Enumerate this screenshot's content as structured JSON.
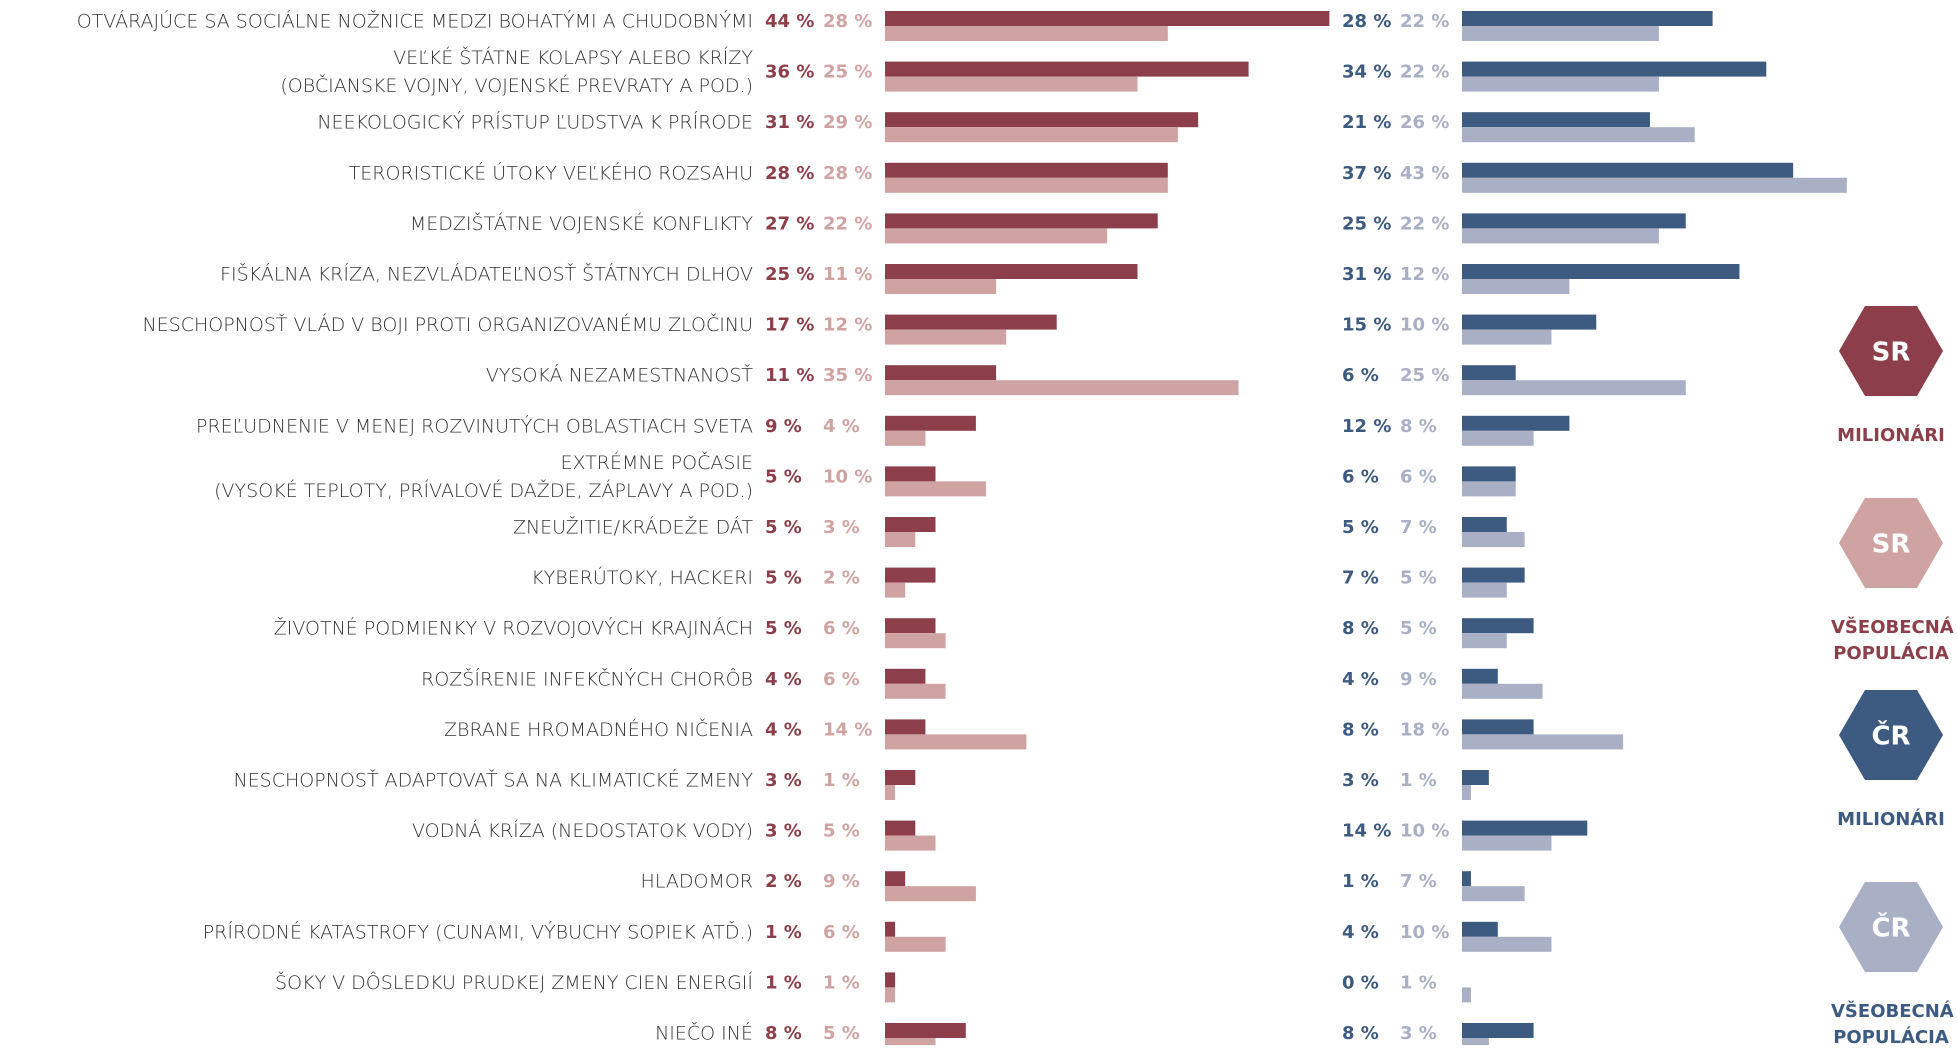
{
  "chart_data": {
    "type": "bar",
    "orientation": "horizontal",
    "categories": [
      "OTVÁRAJÚCE SA SOCIÁLNE NOŽNICE MEDZI BOHATÝMI A CHUDOBNÝMI",
      [
        "VEĽKÉ ŠTÁTNE KOLAPSY ALEBO KRÍZY",
        "(OBČIANSKE VOJNY, VOJENSKÉ PREVRATY A POD.)"
      ],
      "NEEKOLOGICKÝ PRÍSTUP ĽUDSTVA K PRÍRODE",
      "TERORISTICKÉ ÚTOKY VEĽKÉHO ROZSAHU",
      "MEDZIŠTÁTNE VOJENSKÉ KONFLIKTY",
      "FIŠKÁLNA KRÍZA, NEZVLÁDATEĽNOSŤ ŠTÁTNYCH DLHOV",
      "NESCHOPNOSŤ VLÁD V BOJI PROTI ORGANIZOVANÉMU ZLOČINU",
      "VYSOKÁ NEZAMESTNANOSŤ",
      "PREĽUDNENIE V MENEJ ROZVINUTÝCH OBLASTIACH SVETA",
      [
        "EXTRÉMNE POČASIE",
        "(VYSOKÉ TEPLOTY, PRÍVALOVÉ DAŽDE, ZÁPLAVY A POD.)"
      ],
      "ZNEUŽITIE/KRÁDEŽE DÁT",
      "KYBERÚTOKY, HACKERI",
      "ŽIVOTNÉ PODMIENKY V ROZVOJOVÝCH KRAJINÁCH",
      "ROZŠÍRENIE INFEKČNÝCH CHORÔB",
      "ZBRANE HROMADNÉHO NIČENIA",
      "NESCHOPNOSŤ ADAPTOVAŤ SA NA KLIMATICKÉ ZMENY",
      "VODNÁ KRÍZA (NEDOSTATOK VODY)",
      "HLADOMOR",
      "PRÍRODNÉ KATASTROFY (CUNAMI, VÝBUCHY SOPIEK ATĎ.)",
      "ŠOKY V DÔSLEDKU PRUDKEJ ZMENY CIEN ENERGIÍ",
      "NIEČO INÉ"
    ],
    "series": [
      {
        "name": "MILIONÁRI",
        "group": "SR",
        "color": "#8c3f4a",
        "values": [
          44,
          36,
          31,
          28,
          27,
          25,
          17,
          11,
          9,
          5,
          5,
          5,
          5,
          4,
          4,
          3,
          3,
          2,
          1,
          1,
          8
        ],
        "value_labels": [
          "44 %",
          "36 %",
          "31 %",
          "28 %",
          "27 %",
          "25 %",
          "17 %",
          "11 %",
          "9 %",
          "5 %",
          "5 %",
          "5 %",
          "5 %",
          "4 %",
          "4 %",
          "3 %",
          "3 %",
          "2 %",
          "1 %",
          "1 %",
          "8 %"
        ]
      },
      {
        "name": "VŠEOBECNÁ POPULÁCIA",
        "group": "SR",
        "color": "#cfa3a2",
        "values": [
          28,
          25,
          29,
          28,
          22,
          11,
          12,
          35,
          4,
          10,
          3,
          2,
          6,
          6,
          14,
          1,
          5,
          9,
          6,
          1,
          5
        ],
        "value_labels": [
          "28 %",
          "25 %",
          "29 %",
          "28 %",
          "22 %",
          "11 %",
          "12 %",
          "35 %",
          "4 %",
          "10 %",
          "3 %",
          "2 %",
          "6 %",
          "6 %",
          "14 %",
          "1 %",
          "5 %",
          "9 %",
          "6 %",
          "1 %",
          "5 %"
        ]
      },
      {
        "name": "MILIONÁRI",
        "group": "ČR",
        "color": "#3d5a80",
        "values": [
          28,
          34,
          21,
          37,
          25,
          31,
          15,
          6,
          12,
          6,
          5,
          7,
          8,
          4,
          8,
          3,
          14,
          1,
          4,
          0,
          8
        ],
        "value_labels": [
          "28 %",
          "34 %",
          "21 %",
          "37 %",
          "25 %",
          "31 %",
          "15 %",
          "6 %",
          "12 %",
          "6 %",
          "5 %",
          "7 %",
          "8 %",
          "4 %",
          "8 %",
          "3 %",
          "14 %",
          "1 %",
          "4 %",
          "0 %",
          "8 %"
        ]
      },
      {
        "name": "VŠEOBECNÁ POPULÁCIA",
        "group": "ČR",
        "color": "#a9b0c5",
        "values": [
          22,
          22,
          26,
          43,
          22,
          12,
          10,
          25,
          8,
          6,
          7,
          5,
          5,
          9,
          18,
          1,
          10,
          7,
          10,
          1,
          3
        ],
        "value_labels": [
          "22 %",
          "22 %",
          "26 %",
          "43 %",
          "22 %",
          "12 %",
          "10 %",
          "25 %",
          "8 %",
          "6 %",
          "7 %",
          "5 %",
          "5 %",
          "9 %",
          "18 %",
          "1 %",
          "10 %",
          "7 %",
          "10 %",
          "1 %",
          "3 %"
        ]
      }
    ]
  }
}
